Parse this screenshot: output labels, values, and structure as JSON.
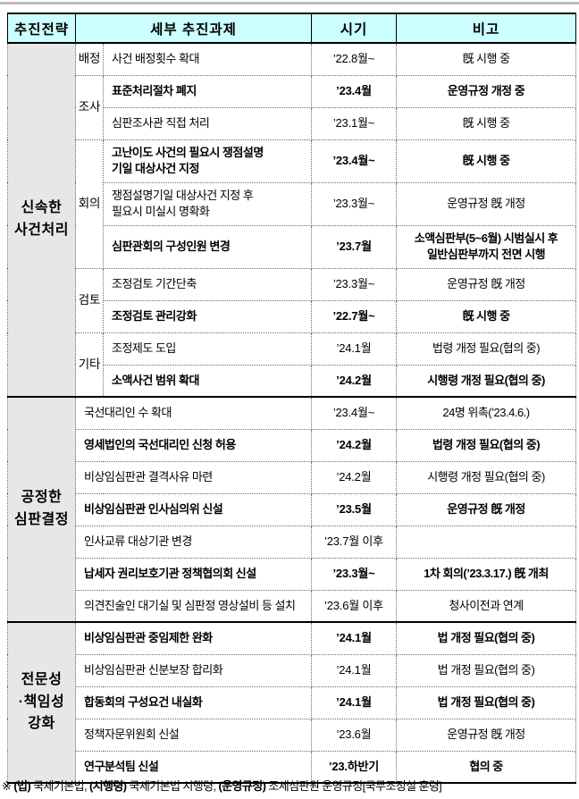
{
  "table": {
    "headers": [
      "추진전략",
      "세부 추진과제",
      "시기",
      "비고"
    ],
    "colors": {
      "header_bg": "#ccffff",
      "strategy_bg": "#e7e7e7",
      "grid_dotted": "#6b6b6b",
      "section_line": "#000000",
      "top_rule": "#bdbdbd"
    },
    "sections": [
      {
        "label": "신속한\n사건처리",
        "rows": [
          {
            "group": "배정",
            "task": "사건 배정횟수 확대",
            "time": "’22.8월~",
            "note": "旣 시행 중",
            "emphasis": false
          },
          {
            "group": "조사",
            "task": "표준처리절차 폐지",
            "time": "’23.4월",
            "note": "운영규정 개정 중",
            "emphasis": true
          },
          {
            "task": "심판조사관 직접 처리",
            "time": "’23.1월~",
            "note": "旣 시행 중",
            "emphasis": false
          },
          {
            "group": "회의",
            "task": "고난이도 사건의 필요시 쟁점설명\n기일 대상사건 지정",
            "time": "’23.4월~",
            "note": "旣 시행 중",
            "emphasis": true
          },
          {
            "task": "쟁점설명기일 대상사건 지정 후\n필요시 미실시 명확화",
            "time": "’23.3월~",
            "note": "운영규정 旣 개정",
            "emphasis": false
          },
          {
            "task": "심판관회의 구성인원 변경",
            "time": "’23.7월",
            "note": "소액심판부(5~6월) 시범실시 후\n일반심판부까지 전면 시행",
            "emphasis": true
          },
          {
            "group": "검토",
            "task": "조정검토 기간단축",
            "time": "’23.3월~",
            "note": "운영규정 旣 개정",
            "emphasis": false
          },
          {
            "task": "조정검토 관리강화",
            "time": "’22.7월~",
            "note": "旣 시행 중",
            "emphasis": true
          },
          {
            "group": "기타",
            "task": "조정제도 도입",
            "time": "’24.1월",
            "note": "법령 개정 필요(협의 중)",
            "emphasis": false
          },
          {
            "task": "소액사건 범위 확대",
            "time": "’24.2월",
            "note": "시행령 개정 필요(협의 중)",
            "emphasis": true
          }
        ]
      },
      {
        "label": "공정한\n심판결정",
        "rows": [
          {
            "task": "국선대리인 수 확대",
            "time": "’23.4월~",
            "note": "24명 위촉(’23.4.6.)",
            "emphasis": false
          },
          {
            "task": "영세법인의 국선대리인 신청 허용",
            "time": "’24.2월",
            "note": "법령 개정 필요(협의 중)",
            "emphasis": true
          },
          {
            "task": "비상임심판관 결격사유 마련",
            "time": "’24.2월",
            "note": "시행령 개정 필요(협의 중)",
            "emphasis": false
          },
          {
            "task": "비상임심판관 인사심의위 신설",
            "time": "’23.5월",
            "note": "운영규정 旣 개정",
            "emphasis": true
          },
          {
            "task": "인사교류 대상기관 변경",
            "time": "’23.7월 이후",
            "note": "",
            "emphasis": false
          },
          {
            "task": "납세자 권리보호기관 정책협의회 신설",
            "time": "’23.3월~",
            "note": "1차 회의(’23.3.17.) 旣 개최",
            "emphasis": true
          },
          {
            "task": "의견진술인 대기실 및 심판정 영상설비 등 설치",
            "time": "’23.6월 이후",
            "note": "청사이전과 연계",
            "emphasis": false
          }
        ]
      },
      {
        "label": "전문성\n·책임성\n강화",
        "rows": [
          {
            "task": "비상임심판관 중임제한 완화",
            "time": "’24.1월",
            "note": "법 개정 필요(협의 중)",
            "emphasis": true
          },
          {
            "task": "비상임심판관 신분보장 합리화",
            "time": "’24.1월",
            "note": "법 개정 필요(협의 중)",
            "emphasis": false
          },
          {
            "task": "합동회의 구성요건 내실화",
            "time": "’24.1월",
            "note": "법 개정 필요(협의 중)",
            "emphasis": true
          },
          {
            "task": "정책자문위원회 신설",
            "time": "’23.6월",
            "note": "운영규정 旣 개정",
            "emphasis": false
          },
          {
            "task": "연구분석팀 신설",
            "time": "’23.하반기",
            "note": "협의 중",
            "emphasis": true
          }
        ]
      }
    ]
  },
  "footnote": {
    "segments": [
      {
        "text": "※ ",
        "bold": false
      },
      {
        "text": "(법)",
        "bold": true
      },
      {
        "text": " 국세기본법, ",
        "bold": false
      },
      {
        "text": "(시행령)",
        "bold": true
      },
      {
        "text": " 국세기본법 시행령, ",
        "bold": false
      },
      {
        "text": "(운영규정)",
        "bold": true
      },
      {
        "text": " 조세심판원 운영규정[국무조정실 훈령]",
        "bold": false
      }
    ]
  }
}
